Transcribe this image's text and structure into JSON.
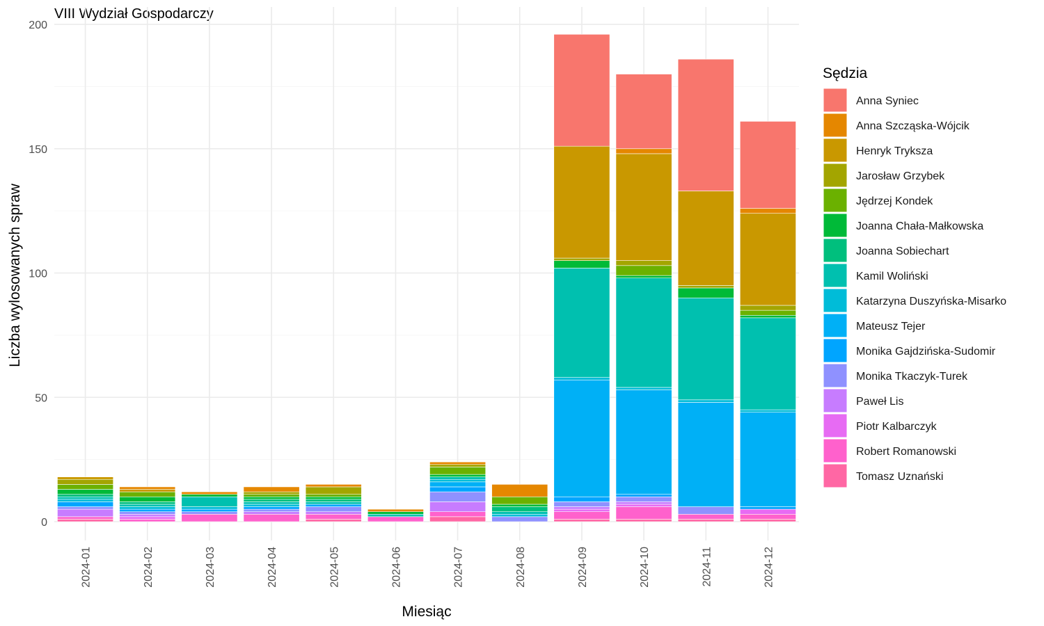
{
  "chart_data": {
    "type": "bar",
    "stacked": true,
    "title": "VIII Wydział Gospodarczy",
    "xlabel": "Miesiąc",
    "ylabel": "Liczba wylosowanych spraw",
    "ylim": [
      0,
      207
    ],
    "y_ticks": [
      0,
      50,
      100,
      150,
      200
    ],
    "grid": true,
    "legend_title": "Sędzia",
    "legend_position": "right",
    "categories": [
      "2024-01",
      "2024-02",
      "2024-03",
      "2024-04",
      "2024-05",
      "2024-06",
      "2024-07",
      "2024-08",
      "2024-09",
      "2024-10",
      "2024-11",
      "2024-12"
    ],
    "series": [
      {
        "name": "Anna Syniec",
        "color": "#F8766D",
        "values": [
          0,
          0,
          0,
          0,
          0,
          0,
          0,
          0,
          45,
          30,
          53,
          35
        ]
      },
      {
        "name": "Anna Szcząska-Wójcik",
        "color": "#E58700",
        "values": [
          0,
          1,
          1,
          2,
          1,
          1,
          1,
          5,
          0,
          2,
          0,
          2
        ]
      },
      {
        "name": "Henryk Tryksza",
        "color": "#C99800",
        "values": [
          1,
          1,
          0,
          0,
          0,
          0,
          0,
          0,
          45,
          43,
          38,
          37
        ]
      },
      {
        "name": "Jarosław Grzybek",
        "color": "#A3A500",
        "values": [
          2,
          0,
          0,
          1,
          3,
          0,
          1,
          0,
          1,
          2,
          1,
          2
        ]
      },
      {
        "name": "Jędrzej Kondek",
        "color": "#6BB100",
        "values": [
          2,
          2,
          0,
          1,
          1,
          0,
          3,
          3,
          0,
          4,
          0,
          2
        ]
      },
      {
        "name": "Joanna Chała-Małkowska",
        "color": "#00BA38",
        "values": [
          2,
          2,
          1,
          1,
          1,
          1,
          1,
          1,
          3,
          1,
          4,
          1
        ]
      },
      {
        "name": "Joanna Sobiechart",
        "color": "#00BF7D",
        "values": [
          1,
          1,
          0,
          1,
          1,
          0,
          0,
          2,
          0,
          0,
          0,
          0
        ]
      },
      {
        "name": "Kamil Woliński",
        "color": "#00C0AF",
        "values": [
          1,
          1,
          4,
          1,
          1,
          1,
          1,
          1,
          44,
          44,
          41,
          37
        ]
      },
      {
        "name": "Katarzyna Duszyńska-Misarko",
        "color": "#00BCD8",
        "values": [
          1,
          1,
          1,
          1,
          0,
          0,
          1,
          1,
          1,
          1,
          1,
          1
        ]
      },
      {
        "name": "Mateusz Tejer",
        "color": "#00B0F6",
        "values": [
          0,
          0,
          0,
          0,
          0,
          0,
          2,
          0,
          47,
          42,
          42,
          38
        ]
      },
      {
        "name": "Monika Gajdzińska-Sudomir",
        "color": "#00A5FF",
        "values": [
          2,
          1,
          1,
          1,
          1,
          0,
          2,
          0,
          2,
          1,
          0,
          1
        ]
      },
      {
        "name": "Monika Tkaczyk-Turek",
        "color": "#8F91FF",
        "values": [
          1,
          1,
          1,
          1,
          2,
          0,
          4,
          2,
          2,
          2,
          3,
          0
        ]
      },
      {
        "name": "Paweł Lis",
        "color": "#C77CFF",
        "values": [
          3,
          1,
          0,
          1,
          1,
          0,
          4,
          0,
          1,
          1,
          0,
          0
        ]
      },
      {
        "name": "Piotr Kalbarczyk",
        "color": "#E76BF3",
        "values": [
          0,
          1,
          0,
          0,
          0,
          0,
          0,
          0,
          1,
          1,
          0,
          2
        ]
      },
      {
        "name": "Robert Romanowski",
        "color": "#FF61CC",
        "values": [
          1,
          1,
          3,
          3,
          2,
          2,
          2,
          0,
          3,
          5,
          2,
          2
        ]
      },
      {
        "name": "Tomasz Uznański",
        "color": "#FF67A4",
        "values": [
          1,
          0,
          0,
          0,
          1,
          0,
          2,
          0,
          1,
          1,
          1,
          1
        ]
      }
    ]
  }
}
